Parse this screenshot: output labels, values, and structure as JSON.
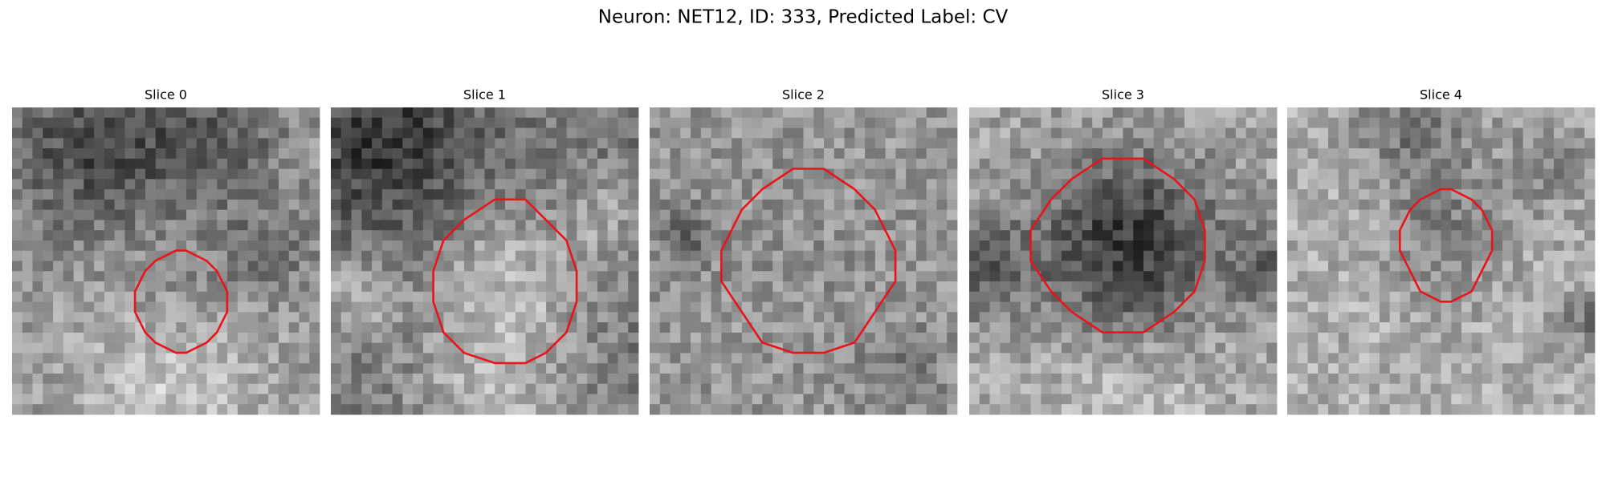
{
  "title": "Neuron: NET12, ID: 333, Predicted Label: CV",
  "panels": [
    {
      "title": "Slice 0"
    },
    {
      "title": "Slice 1"
    },
    {
      "title": "Slice 2"
    },
    {
      "title": "Slice 3"
    },
    {
      "title": "Slice 4"
    }
  ]
}
